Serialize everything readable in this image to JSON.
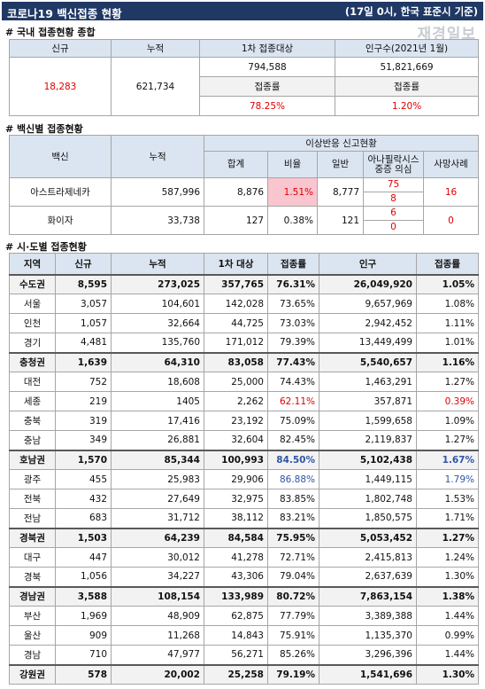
{
  "header": {
    "title": "코로나19 백신접종 현황",
    "note": "(17일 0시, 한국 표준시 기준)",
    "logo": "재경일보"
  },
  "summary": {
    "label": "# 국내 접종현황 종합",
    "headers": [
      "신규",
      "누적",
      "1차 접종대상",
      "인구수(2021년 1월)"
    ],
    "new": "18,283",
    "total": "621,734",
    "target": "794,588",
    "population": "51,821,669",
    "rate_labels": [
      "접종률",
      "접종률"
    ],
    "rates": [
      "78.25%",
      "1.20%"
    ]
  },
  "by_vaccine": {
    "label": "# 백신별 접종현황",
    "headers": {
      "vaccine": "백신",
      "total": "누적",
      "adverse": "이상반응 신고현황",
      "sub": [
        "합계",
        "비율",
        "일반",
        "아나필락시스 중증 의심",
        "사망사례"
      ]
    },
    "rows": [
      {
        "vaccine": "아스트라제네카",
        "total": "587,996",
        "adverse_total": "8,876",
        "ratio": "1.51%",
        "general": "8,777",
        "anaphylaxis": [
          "75",
          "8"
        ],
        "deaths": "16"
      },
      {
        "vaccine": "화이자",
        "total": "33,738",
        "adverse_total": "127",
        "ratio": "0.38%",
        "general": "121",
        "anaphylaxis": [
          "6",
          "0"
        ],
        "deaths": "0"
      }
    ]
  },
  "by_region": {
    "label": "# 시·도별 접종현황",
    "headers": [
      "지역",
      "신규",
      "누적",
      "1차 대상",
      "접종률",
      "인구",
      "접종률"
    ],
    "rows": [
      [
        "수도권",
        "8,595",
        "273,025",
        "357,765",
        "76.31%",
        "26,049,920",
        "1.05%"
      ],
      [
        "서울",
        "3,057",
        "104,601",
        "142,028",
        "73.65%",
        "9,657,969",
        "1.08%"
      ],
      [
        "인천",
        "1,057",
        "32,664",
        "44,725",
        "73.03%",
        "2,942,452",
        "1.11%"
      ],
      [
        "경기",
        "4,481",
        "135,760",
        "171,012",
        "79.39%",
        "13,449,499",
        "1.01%"
      ],
      [
        "충청권",
        "1,639",
        "64,310",
        "83,058",
        "77.43%",
        "5,540,657",
        "1.16%"
      ],
      [
        "대전",
        "752",
        "18,608",
        "25,000",
        "74.43%",
        "1,463,291",
        "1.27%"
      ],
      [
        "세종",
        "219",
        "1405",
        "2,262",
        "62.11%",
        "357,871",
        "0.39%"
      ],
      [
        "충북",
        "319",
        "17,416",
        "23,192",
        "75.09%",
        "1,599,658",
        "1.09%"
      ],
      [
        "충남",
        "349",
        "26,881",
        "32,604",
        "82.45%",
        "2,119,837",
        "1.27%"
      ],
      [
        "호남권",
        "1,570",
        "85,344",
        "100,993",
        "84.50%",
        "5,102,438",
        "1.67%"
      ],
      [
        "광주",
        "455",
        "25,983",
        "29,906",
        "86.88%",
        "1,449,115",
        "1.79%"
      ],
      [
        "전북",
        "432",
        "27,649",
        "32,975",
        "83.85%",
        "1,802,748",
        "1.53%"
      ],
      [
        "전남",
        "683",
        "31,712",
        "38,112",
        "83.21%",
        "1,850,575",
        "1.71%"
      ],
      [
        "경북권",
        "1,503",
        "64,239",
        "84,584",
        "75.95%",
        "5,053,452",
        "1.27%"
      ],
      [
        "대구",
        "447",
        "30,012",
        "41,278",
        "72.71%",
        "2,415,813",
        "1.24%"
      ],
      [
        "경북",
        "1,056",
        "34,227",
        "43,306",
        "79.04%",
        "2,637,639",
        "1.30%"
      ],
      [
        "경남권",
        "3,588",
        "108,154",
        "133,989",
        "80.72%",
        "7,863,154",
        "1.38%"
      ],
      [
        "부산",
        "1,969",
        "48,909",
        "62,875",
        "77.79%",
        "3,389,388",
        "1.44%"
      ],
      [
        "울산",
        "909",
        "11,268",
        "14,843",
        "75.91%",
        "1,135,370",
        "0.99%"
      ],
      [
        "경남",
        "710",
        "47,977",
        "56,271",
        "85.26%",
        "3,296,396",
        "1.44%"
      ],
      [
        "강원권",
        "578",
        "20,002",
        "25,258",
        "79.19%",
        "1,541,696",
        "1.30%"
      ]
    ]
  }
}
